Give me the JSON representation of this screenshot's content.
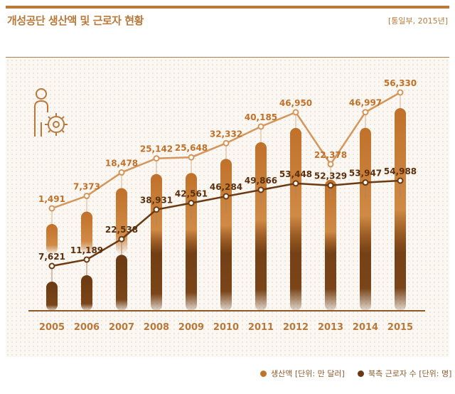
{
  "header": {
    "title": "개성공단 생산액 및 근로자 현황",
    "source": "[통일부, 2015년]"
  },
  "colors": {
    "accent": "#b8793b",
    "production": "#c0712a",
    "workers": "#6b3a12"
  },
  "chart_data": {
    "type": "bar",
    "title": "개성공단 생산액 및 근로자 현황",
    "categories": [
      "2005",
      "2006",
      "2007",
      "2008",
      "2009",
      "2010",
      "2011",
      "2012",
      "2013",
      "2014",
      "2015"
    ],
    "series": [
      {
        "name": "생산액 [단위: 만 달러]",
        "values": [
          1491,
          7373,
          18478,
          25142,
          25648,
          32332,
          40185,
          46950,
          22378,
          46997,
          56330
        ],
        "labels": [
          "1,491",
          "7,373",
          "18,478",
          "25,142",
          "25,648",
          "32,332",
          "40,185",
          "46,950",
          "22,378",
          "46,997",
          "56,330"
        ]
      },
      {
        "name": "북측 근로자 수 [단위: 명]",
        "values": [
          7621,
          11189,
          22538,
          38931,
          42561,
          46284,
          49866,
          53448,
          52329,
          53947,
          54988
        ],
        "labels": [
          "7,621",
          "11,189",
          "22,538",
          "38,931",
          "42,561",
          "46,284",
          "49,866",
          "53,448",
          "52,329",
          "53,947",
          "54,988"
        ]
      }
    ],
    "legend_position": "bottom-right",
    "xlabel": "",
    "ylabel": ""
  }
}
